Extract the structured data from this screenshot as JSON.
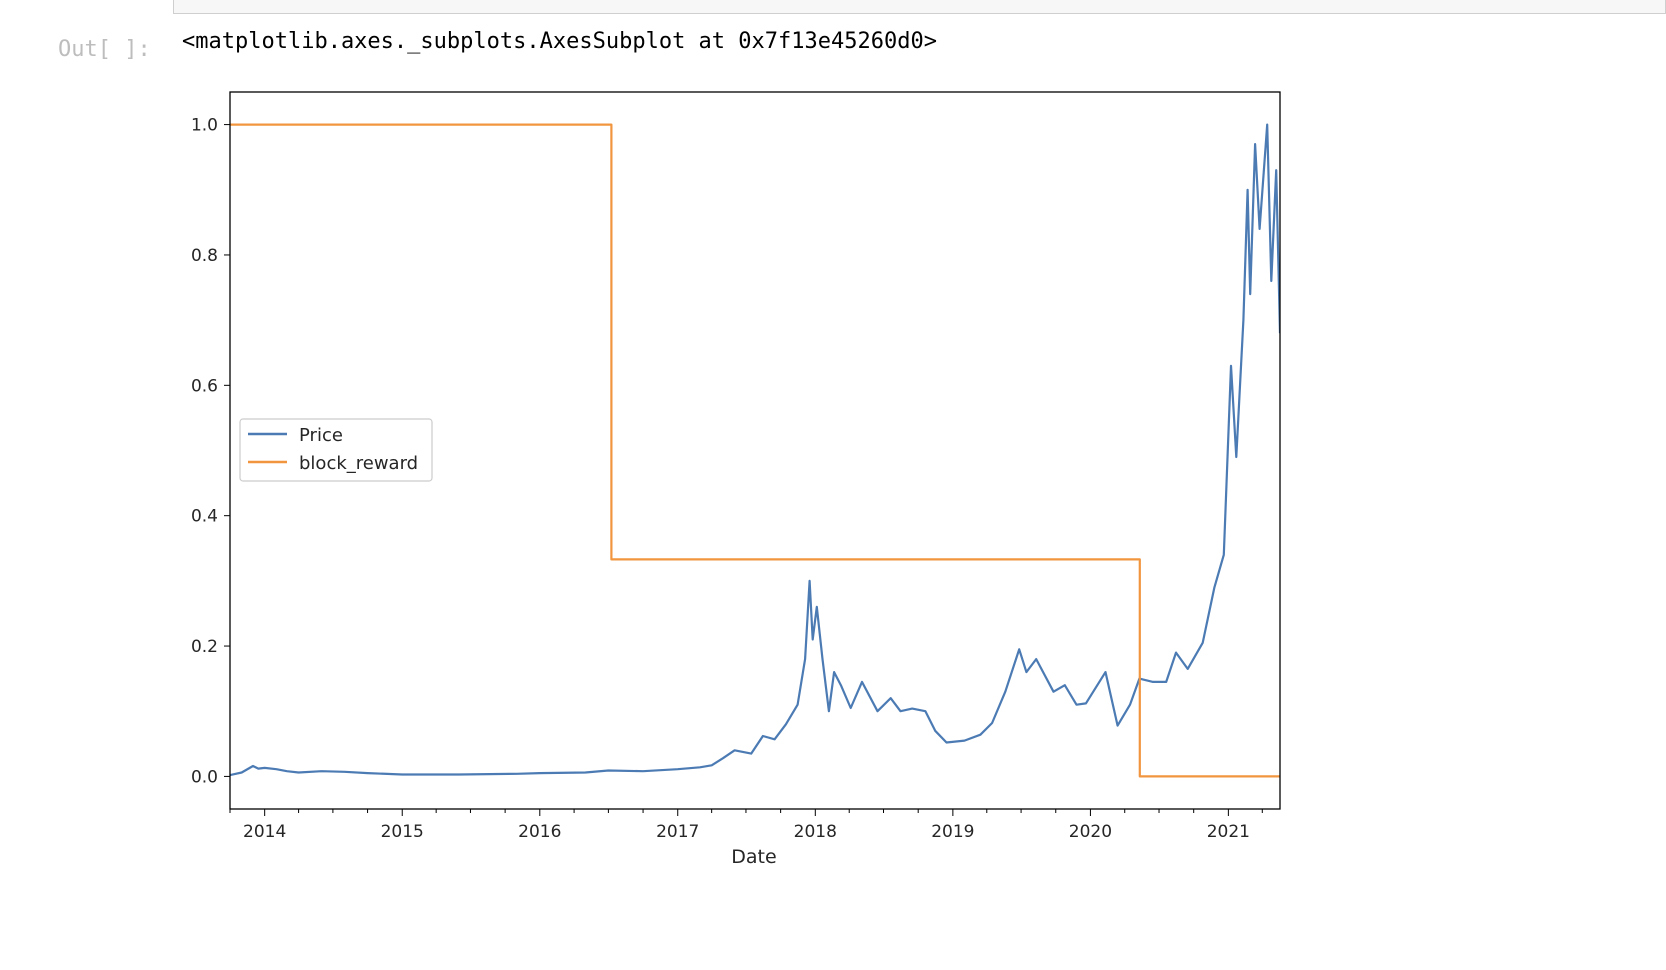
{
  "cell": {
    "prompt": "Out[ ]:",
    "repr": "<matplotlib.axes._subplots.AxesSubplot at 0x7f13e45260d0>"
  },
  "colors": {
    "price": "#4c7bb4",
    "block_reward": "#f2953f",
    "axes": "#000000"
  },
  "chart_data": {
    "type": "line",
    "title": "",
    "xlabel": "Date",
    "ylabel": "",
    "xlim": [
      "2013-10-01",
      "2021-05-18"
    ],
    "ylim": [
      -0.05,
      1.05
    ],
    "x_ticks": [
      "2014",
      "2015",
      "2016",
      "2017",
      "2018",
      "2019",
      "2020",
      "2021"
    ],
    "y_ticks": [
      "0.0",
      "0.2",
      "0.4",
      "0.6",
      "0.8",
      "1.0"
    ],
    "grid": false,
    "legend": {
      "placement": "center-left",
      "entries": [
        "Price",
        "block_reward"
      ]
    },
    "series": [
      {
        "name": "Price",
        "color": "#4c7bb4",
        "points": [
          [
            "2013-10-01",
            0.002
          ],
          [
            "2013-11-01",
            0.006
          ],
          [
            "2013-12-01",
            0.016
          ],
          [
            "2013-12-15",
            0.012
          ],
          [
            "2014-01-01",
            0.013
          ],
          [
            "2014-02-01",
            0.011
          ],
          [
            "2014-03-01",
            0.008
          ],
          [
            "2014-04-01",
            0.006
          ],
          [
            "2014-06-01",
            0.008
          ],
          [
            "2014-08-01",
            0.007
          ],
          [
            "2014-10-01",
            0.005
          ],
          [
            "2015-01-01",
            0.003
          ],
          [
            "2015-06-01",
            0.003
          ],
          [
            "2015-11-01",
            0.004
          ],
          [
            "2016-01-01",
            0.005
          ],
          [
            "2016-05-01",
            0.006
          ],
          [
            "2016-07-01",
            0.009
          ],
          [
            "2016-10-01",
            0.008
          ],
          [
            "2017-01-01",
            0.011
          ],
          [
            "2017-03-01",
            0.014
          ],
          [
            "2017-04-01",
            0.017
          ],
          [
            "2017-05-01",
            0.028
          ],
          [
            "2017-06-01",
            0.04
          ],
          [
            "2017-07-15",
            0.035
          ],
          [
            "2017-08-15",
            0.062
          ],
          [
            "2017-09-15",
            0.057
          ],
          [
            "2017-10-15",
            0.08
          ],
          [
            "2017-11-15",
            0.11
          ],
          [
            "2017-12-05",
            0.18
          ],
          [
            "2017-12-17",
            0.3
          ],
          [
            "2017-12-25",
            0.21
          ],
          [
            "2018-01-05",
            0.26
          ],
          [
            "2018-01-20",
            0.18
          ],
          [
            "2018-02-06",
            0.1
          ],
          [
            "2018-02-20",
            0.16
          ],
          [
            "2018-03-10",
            0.14
          ],
          [
            "2018-04-05",
            0.105
          ],
          [
            "2018-05-05",
            0.145
          ],
          [
            "2018-06-15",
            0.1
          ],
          [
            "2018-07-20",
            0.12
          ],
          [
            "2018-08-15",
            0.1
          ],
          [
            "2018-09-15",
            0.104
          ],
          [
            "2018-10-20",
            0.1
          ],
          [
            "2018-11-15",
            0.07
          ],
          [
            "2018-12-15",
            0.052
          ],
          [
            "2019-02-01",
            0.055
          ],
          [
            "2019-03-15",
            0.064
          ],
          [
            "2019-04-15",
            0.082
          ],
          [
            "2019-05-20",
            0.13
          ],
          [
            "2019-06-26",
            0.195
          ],
          [
            "2019-07-15",
            0.16
          ],
          [
            "2019-08-10",
            0.18
          ],
          [
            "2019-09-25",
            0.13
          ],
          [
            "2019-10-25",
            0.14
          ],
          [
            "2019-11-25",
            0.11
          ],
          [
            "2019-12-20",
            0.112
          ],
          [
            "2020-02-10",
            0.16
          ],
          [
            "2020-03-13",
            0.078
          ],
          [
            "2020-04-15",
            0.11
          ],
          [
            "2020-05-10",
            0.15
          ],
          [
            "2020-06-15",
            0.145
          ],
          [
            "2020-07-20",
            0.145
          ],
          [
            "2020-08-15",
            0.19
          ],
          [
            "2020-09-15",
            0.165
          ],
          [
            "2020-10-25",
            0.205
          ],
          [
            "2020-11-25",
            0.29
          ],
          [
            "2020-12-20",
            0.34
          ],
          [
            "2021-01-08",
            0.63
          ],
          [
            "2021-01-22",
            0.49
          ],
          [
            "2021-02-10",
            0.7
          ],
          [
            "2021-02-21",
            0.9
          ],
          [
            "2021-02-28",
            0.74
          ],
          [
            "2021-03-13",
            0.97
          ],
          [
            "2021-03-25",
            0.84
          ],
          [
            "2021-04-14",
            1.0
          ],
          [
            "2021-04-25",
            0.76
          ],
          [
            "2021-05-08",
            0.93
          ],
          [
            "2021-05-18",
            0.68
          ]
        ]
      },
      {
        "name": "block_reward",
        "color": "#f2953f",
        "step": "post",
        "points": [
          [
            "2013-10-01",
            1.0
          ],
          [
            "2016-07-09",
            0.333
          ],
          [
            "2020-05-11",
            0.0
          ],
          [
            "2021-05-18",
            0.0
          ]
        ]
      }
    ]
  }
}
